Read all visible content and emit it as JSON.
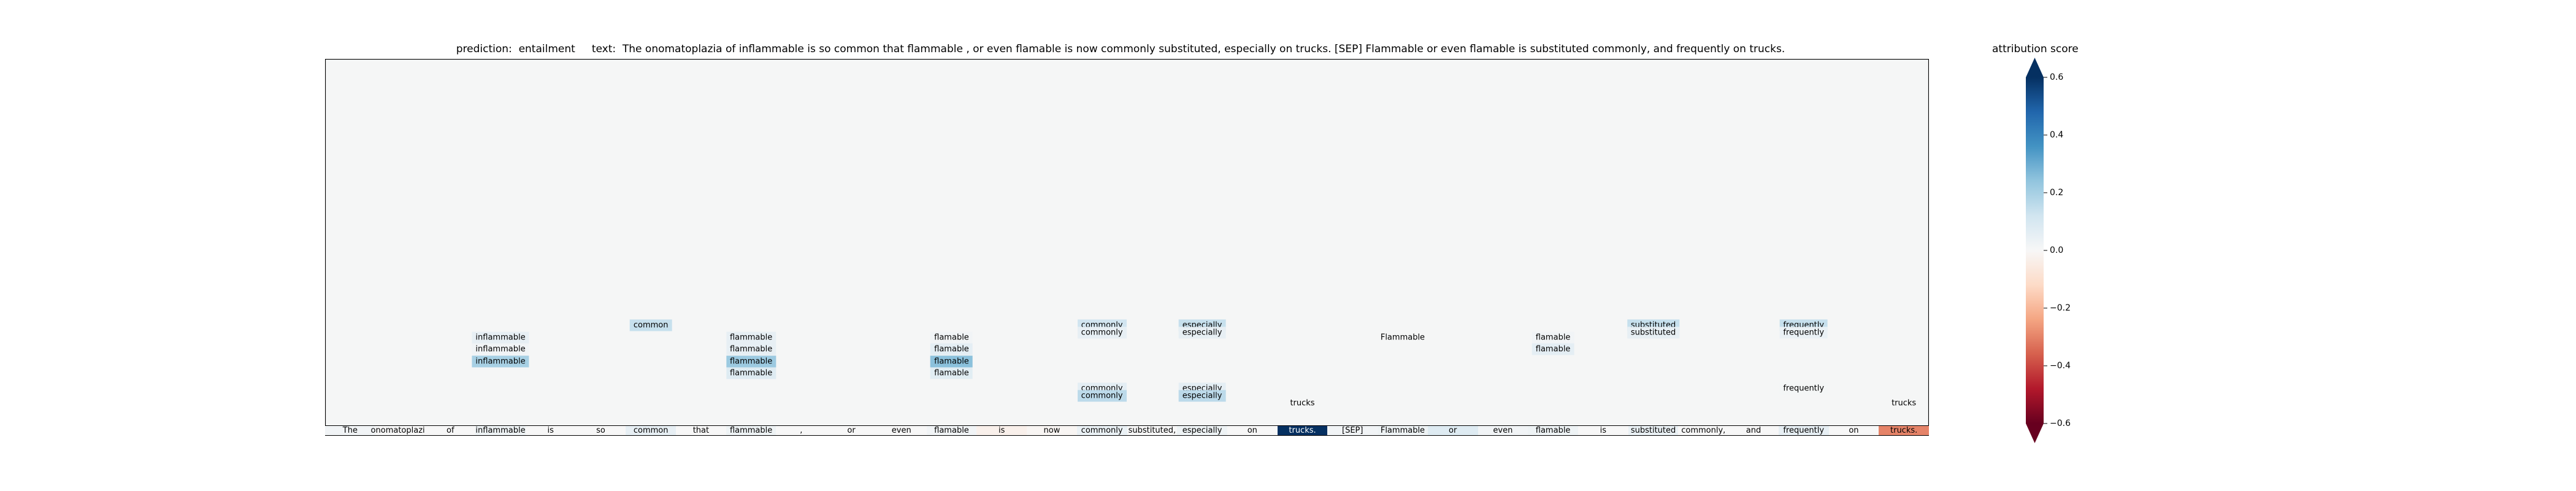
{
  "header": {
    "title": "prediction:  entailment     text:  The onomatoplazia of inflammable is so common that flammable , or even flamable is now commonly substituted, especially on trucks. [SEP] Flammable or even flamable is substituted commonly, and frequently on trucks."
  },
  "chart_data": {
    "type": "heatmap",
    "title": "prediction:  entailment     text:  The onomatoplazia of inflammable is so common that flammable , or even flamable is now commonly substituted, especially on trucks. [SEP] Flammable or even flamable is substituted commonly, and frequently on trucks.",
    "colorbar": {
      "label": "attribution score",
      "range": [
        -0.6,
        0.6
      ],
      "ticks": [
        0.6,
        0.4,
        0.2,
        0.0,
        -0.2,
        -0.4,
        -0.6
      ],
      "tick_labels": [
        "0.6",
        "0.4",
        "0.2",
        "0.0",
        "−0.2",
        "−0.4",
        "−0.6"
      ],
      "colormap": "RdBu",
      "extend": "both"
    },
    "tokens": [
      "The",
      "onomatoplazia",
      "of",
      "inflammable",
      "is",
      "so",
      "common",
      "that",
      "flammable",
      ",",
      "or",
      "even",
      "flamable",
      "is",
      "now",
      "commonly",
      "substituted,",
      "especially",
      "on",
      "trucks.",
      "[SEP]",
      "Flammable",
      "or",
      "even",
      "flamable",
      "is",
      "substituted",
      "commonly,",
      "and",
      "frequently",
      "on",
      "trucks."
    ],
    "token_scores": [
      0.02,
      0.0,
      0.0,
      0.03,
      0.0,
      0.0,
      0.05,
      0.0,
      0.03,
      0.0,
      0.0,
      0.0,
      0.02,
      -0.03,
      -0.01,
      0.04,
      0.0,
      0.03,
      0.0,
      0.6,
      0.02,
      0.03,
      0.08,
      0.02,
      0.03,
      0.0,
      0.04,
      0.0,
      0.0,
      0.05,
      0.0,
      -0.3
    ],
    "attributions": [
      {
        "token": "inflammable",
        "position": 3,
        "row": 1,
        "score": 0.05
      },
      {
        "token": "inflammable",
        "position": 3,
        "row": 2,
        "score": 0.02
      },
      {
        "token": "inflammable",
        "position": 3,
        "row": 3,
        "score": 0.2
      },
      {
        "token": "common",
        "position": 6,
        "row": 0,
        "score": 0.14
      },
      {
        "token": "flammable",
        "position": 8,
        "row": 1,
        "score": 0.05
      },
      {
        "token": "flammable",
        "position": 8,
        "row": 2,
        "score": 0.05
      },
      {
        "token": "flammable",
        "position": 8,
        "row": 3,
        "score": 0.22
      },
      {
        "token": "flammable",
        "position": 8,
        "row": 4,
        "score": 0.08
      },
      {
        "token": "flamable",
        "position": 12,
        "row": 1,
        "score": 0.02
      },
      {
        "token": "flamable",
        "position": 12,
        "row": 2,
        "score": 0.06
      },
      {
        "token": "flamable",
        "position": 12,
        "row": 3,
        "score": 0.25
      },
      {
        "token": "flamable",
        "position": 12,
        "row": 4,
        "score": 0.07
      },
      {
        "token": "commonly",
        "position": 15,
        "row": 0,
        "score": 0.12
      },
      {
        "token": "commonly",
        "position": 15,
        "row": 0.6,
        "score": 0.05
      },
      {
        "token": "commonly",
        "position": 15,
        "row": 5.3,
        "score": 0.06
      },
      {
        "token": "commonly",
        "position": 15,
        "row": 5.9,
        "score": 0.16
      },
      {
        "token": "especially",
        "position": 17,
        "row": 0,
        "score": 0.14
      },
      {
        "token": "especially",
        "position": 17,
        "row": 0.6,
        "score": 0.05
      },
      {
        "token": "especially",
        "position": 17,
        "row": 5.3,
        "score": 0.06
      },
      {
        "token": "especially",
        "position": 17,
        "row": 5.9,
        "score": 0.16
      },
      {
        "token": "trucks",
        "position": 19,
        "row": 6.5,
        "score": 0.0
      },
      {
        "token": "Flammable",
        "position": 21,
        "row": 1,
        "score": 0.0
      },
      {
        "token": "flamable",
        "position": 24,
        "row": 1,
        "score": 0.02
      },
      {
        "token": "flamable",
        "position": 24,
        "row": 2,
        "score": 0.06
      },
      {
        "token": "substituted",
        "position": 26,
        "row": 0,
        "score": 0.14
      },
      {
        "token": "substituted",
        "position": 26,
        "row": 0.6,
        "score": 0.05
      },
      {
        "token": "frequently",
        "position": 29,
        "row": 0,
        "score": 0.14
      },
      {
        "token": "frequently",
        "position": 29,
        "row": 0.6,
        "score": 0.04
      },
      {
        "token": "frequently",
        "position": 29,
        "row": 5.3,
        "score": 0.01
      },
      {
        "token": "trucks",
        "position": 31,
        "row": 6.5,
        "score": 0.0
      }
    ]
  }
}
